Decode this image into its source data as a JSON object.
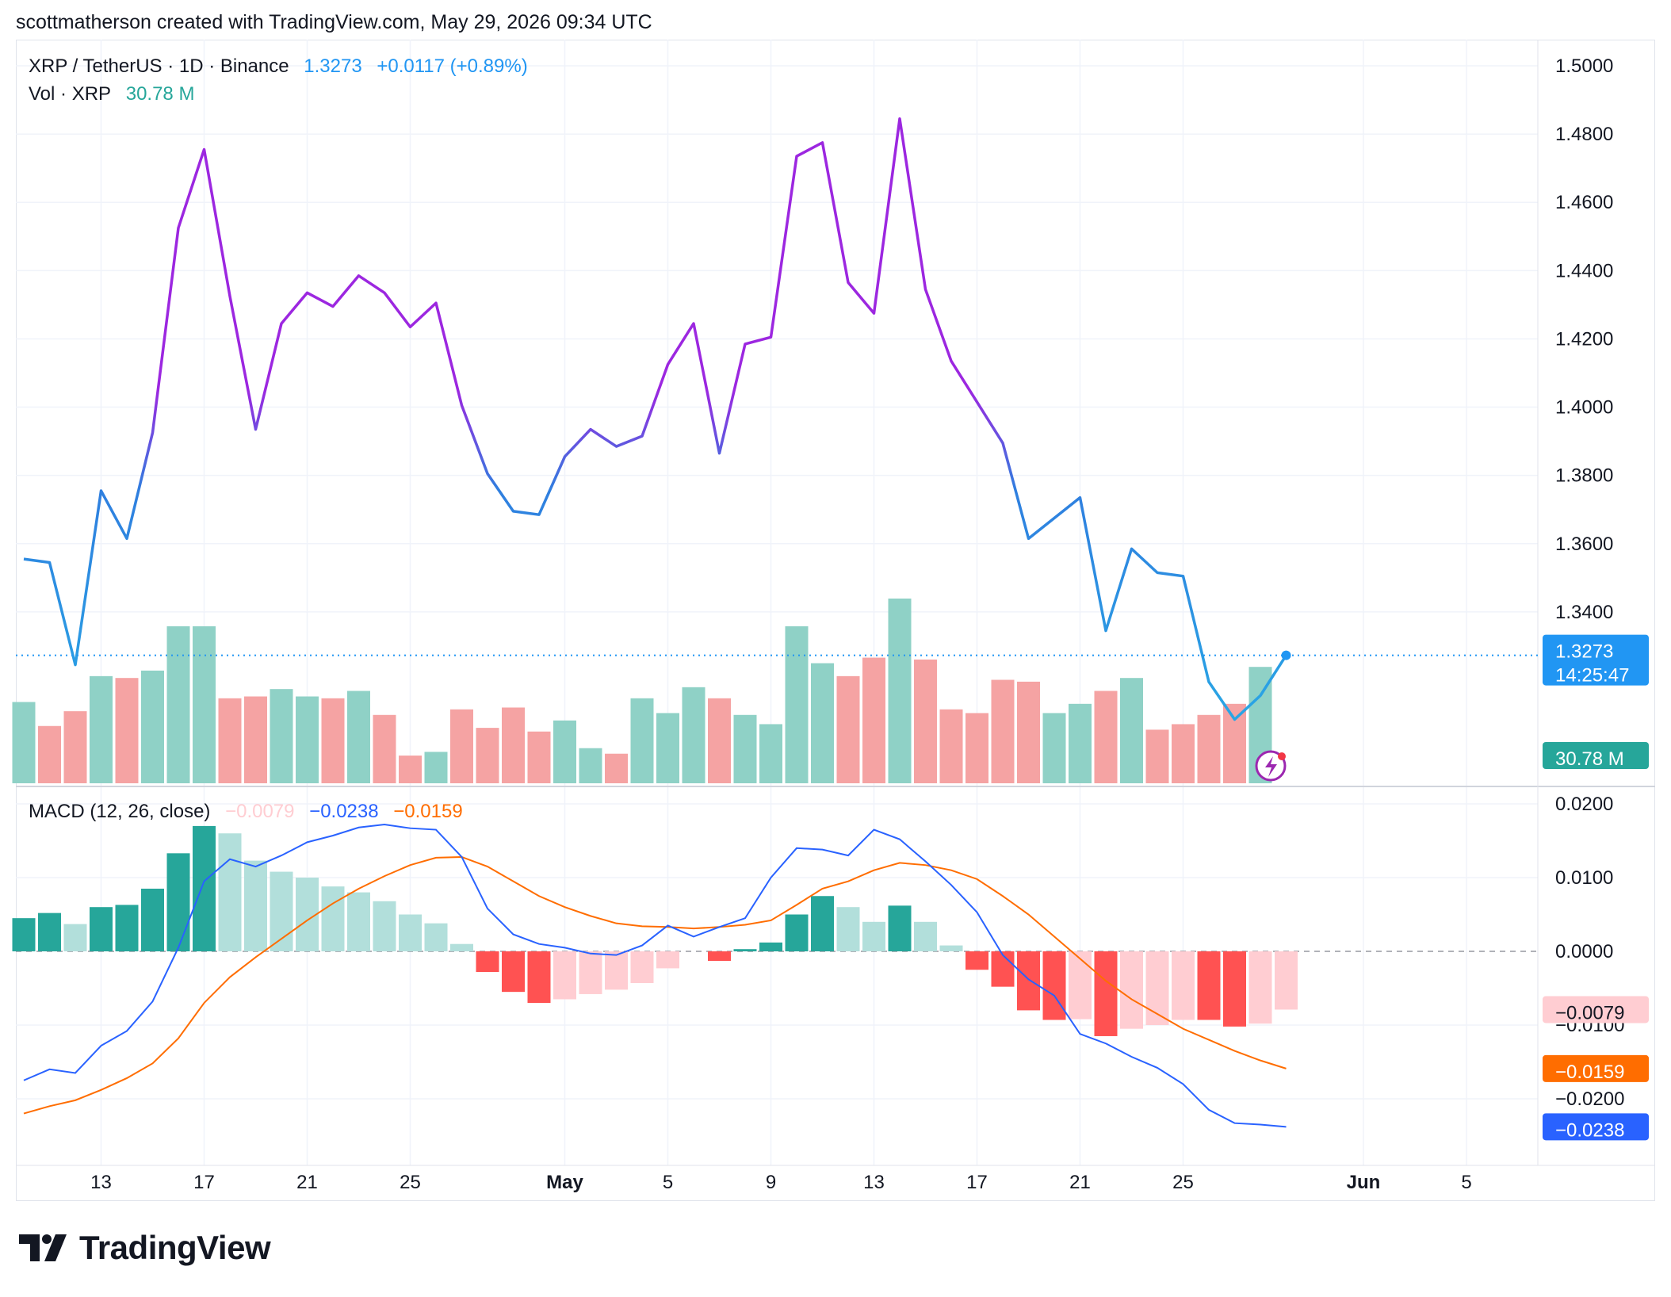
{
  "header": {
    "caption": "scottmatherson created with TradingView.com, May 29, 2026 09:34 UTC"
  },
  "legend": {
    "symbol": "XRP / TetherUS · 1D · Binance",
    "last": "1.3273",
    "change": "+0.0117 (+0.89%)",
    "vol_label": "Vol · XRP",
    "vol_value": "30.78 M",
    "macd_label": "MACD (12, 26, close)",
    "macd_hist": "−0.0079",
    "macd_line": "−0.0238",
    "macd_signal": "−0.0159"
  },
  "price_tag": {
    "price": "1.3273",
    "countdown": "14:25:47"
  },
  "vol_tag": "30.78 M",
  "macd_tags": {
    "hist": "−0.0079",
    "signal": "−0.0159",
    "macd": "−0.0238"
  },
  "footer": {
    "brand": "TradingView"
  },
  "colors": {
    "price_purple": "#9c27e0",
    "price_blue": "#2f7fdf",
    "price_cyan": "#29a6e5",
    "vol_up": "#8fd1c6",
    "vol_down": "#f5a3a3",
    "hist_up_strong": "#26a69a",
    "hist_up_weak": "#b2dfdb",
    "hist_down_strong": "#ff5252",
    "hist_down_weak": "#ffcdd2",
    "macd": "#2962ff",
    "signal": "#ff6d00",
    "tag_last": "#2196f3",
    "tag_vol": "#26a69a"
  },
  "chart_data": [
    {
      "type": "line",
      "title": "XRP / TetherUS · 1D · Binance",
      "x_dates": [
        "Apr 10",
        "Apr 11",
        "Apr 12",
        "Apr 13",
        "Apr 14",
        "Apr 15",
        "Apr 16",
        "Apr 17",
        "Apr 18",
        "Apr 19",
        "Apr 20",
        "Apr 21",
        "Apr 22",
        "Apr 23",
        "Apr 24",
        "Apr 25",
        "Apr 26",
        "Apr 27",
        "Apr 28",
        "Apr 29",
        "Apr 30",
        "May 1",
        "May 2",
        "May 3",
        "May 4",
        "May 5",
        "May 6",
        "May 7",
        "May 8",
        "May 9",
        "May 10",
        "May 11",
        "May 12",
        "May 13",
        "May 14",
        "May 15",
        "May 16",
        "May 17",
        "May 18",
        "May 19",
        "May 20",
        "May 21",
        "May 22",
        "May 23",
        "May 24",
        "May 25",
        "May 26",
        "May 27",
        "May 28",
        "May 29"
      ],
      "close": [
        1.3555,
        1.3545,
        1.3245,
        1.3755,
        1.3615,
        1.3925,
        1.4525,
        1.4755,
        1.4325,
        1.3935,
        1.4245,
        1.4335,
        1.4295,
        1.4385,
        1.4335,
        1.4235,
        1.4305,
        1.4005,
        1.3805,
        1.3695,
        1.3685,
        1.3855,
        1.3935,
        1.3885,
        1.3915,
        1.4125,
        1.4245,
        1.3865,
        1.4185,
        1.4205,
        1.4735,
        1.4775,
        1.4365,
        1.4275,
        1.4845,
        1.4345,
        1.4135,
        1.4015,
        1.3895,
        1.3615,
        1.3675,
        1.3735,
        1.3345,
        1.3585,
        1.3515,
        1.3505,
        1.3195,
        1.3085,
        1.3155,
        1.3273
      ],
      "ylim": [
        1.32,
        1.5
      ],
      "y_ticks": [
        "1.3400",
        "1.3600",
        "1.3800",
        "1.4000",
        "1.4200",
        "1.4400",
        "1.4600",
        "1.4800",
        "1.5000"
      ]
    },
    {
      "type": "bar",
      "title": "Vol · XRP",
      "volume_relative": [
        0.44,
        0.31,
        0.39,
        0.58,
        0.57,
        0.61,
        0.85,
        0.85,
        0.46,
        0.47,
        0.51,
        0.47,
        0.46,
        0.5,
        0.37,
        0.15,
        0.17,
        0.4,
        0.3,
        0.41,
        0.28,
        0.34,
        0.19,
        0.16,
        0.46,
        0.38,
        0.52,
        0.46,
        0.37,
        0.32,
        0.85,
        0.65,
        0.58,
        0.68,
        1.0,
        0.67,
        0.4,
        0.38,
        0.56,
        0.55,
        0.38,
        0.43,
        0.5,
        0.57,
        0.29,
        0.32,
        0.37,
        0.43,
        0.63,
        0.0
      ],
      "direction": [
        "up",
        "down",
        "down",
        "up",
        "down",
        "up",
        "up",
        "up",
        "down",
        "down",
        "up",
        "up",
        "down",
        "up",
        "down",
        "down",
        "up",
        "down",
        "down",
        "down",
        "down",
        "up",
        "up",
        "down",
        "up",
        "up",
        "up",
        "down",
        "up",
        "up",
        "up",
        "up",
        "down",
        "down",
        "up",
        "down",
        "down",
        "down",
        "down",
        "down",
        "up",
        "up",
        "down",
        "up",
        "down",
        "down",
        "down",
        "down",
        "up",
        "up"
      ]
    },
    {
      "type": "bar",
      "title": "MACD (12, 26, close)",
      "histogram": [
        0.0045,
        0.0052,
        0.0037,
        0.006,
        0.0063,
        0.0085,
        0.0133,
        0.017,
        0.016,
        0.0123,
        0.0108,
        0.01,
        0.0088,
        0.008,
        0.0068,
        0.005,
        0.0038,
        0.001,
        -0.0028,
        -0.0055,
        -0.007,
        -0.0065,
        -0.0058,
        -0.0052,
        -0.0043,
        -0.0023,
        0.0,
        -0.0013,
        0.0003,
        0.0012,
        0.005,
        0.0075,
        0.006,
        0.004,
        0.0062,
        0.004,
        0.0008,
        -0.0025,
        -0.0048,
        -0.008,
        -0.0093,
        -0.0092,
        -0.0115,
        -0.0105,
        -0.01,
        -0.0093,
        -0.0093,
        -0.0102,
        -0.0098,
        -0.0079
      ],
      "macd": [
        -0.0175,
        -0.016,
        -0.0165,
        -0.0128,
        -0.0108,
        -0.0068,
        0.0005,
        0.0095,
        0.0125,
        0.0115,
        0.013,
        0.0148,
        0.0157,
        0.0168,
        0.0172,
        0.0167,
        0.0165,
        0.0128,
        0.0058,
        0.0023,
        0.001,
        0.0005,
        -0.0003,
        -0.0005,
        0.0008,
        0.0035,
        0.002,
        0.0033,
        0.0045,
        0.01,
        0.014,
        0.0138,
        0.013,
        0.0165,
        0.0152,
        0.0122,
        0.009,
        0.0053,
        -0.0005,
        -0.0038,
        -0.006,
        -0.0112,
        -0.0125,
        -0.0143,
        -0.0158,
        -0.018,
        -0.0215,
        -0.0233,
        -0.0235,
        -0.0238
      ],
      "signal": [
        -0.022,
        -0.021,
        -0.0202,
        -0.0188,
        -0.0172,
        -0.0152,
        -0.0118,
        -0.007,
        -0.0035,
        -0.0008,
        0.0017,
        0.0042,
        0.0065,
        0.0085,
        0.0102,
        0.0117,
        0.0127,
        0.0128,
        0.0115,
        0.0095,
        0.0075,
        0.006,
        0.0048,
        0.0038,
        0.0034,
        0.0033,
        0.0031,
        0.0033,
        0.0036,
        0.0042,
        0.0063,
        0.0085,
        0.0095,
        0.011,
        0.012,
        0.0117,
        0.011,
        0.0098,
        0.0075,
        0.005,
        0.002,
        -0.001,
        -0.004,
        -0.0065,
        -0.0085,
        -0.0105,
        -0.012,
        -0.0135,
        -0.0148,
        -0.0159
      ],
      "ylim": [
        -0.025,
        0.02
      ],
      "y_ticks": [
        "-0.0200",
        "-0.0100",
        "0.0000",
        "0.0100",
        "0.0200"
      ]
    }
  ],
  "x_axis": {
    "labels": [
      {
        "text": "13",
        "day": 3,
        "bold": false
      },
      {
        "text": "17",
        "day": 7,
        "bold": false
      },
      {
        "text": "21",
        "day": 11,
        "bold": false
      },
      {
        "text": "25",
        "day": 15,
        "bold": false
      },
      {
        "text": "May",
        "day": 21,
        "bold": true
      },
      {
        "text": "5",
        "day": 25,
        "bold": false
      },
      {
        "text": "9",
        "day": 29,
        "bold": false
      },
      {
        "text": "13",
        "day": 33,
        "bold": false
      },
      {
        "text": "17",
        "day": 37,
        "bold": false
      },
      {
        "text": "21",
        "day": 41,
        "bold": false
      },
      {
        "text": "25",
        "day": 45,
        "bold": false
      },
      {
        "text": "Jun",
        "day": 52,
        "bold": true
      },
      {
        "text": "5",
        "day": 56,
        "bold": false
      }
    ]
  }
}
